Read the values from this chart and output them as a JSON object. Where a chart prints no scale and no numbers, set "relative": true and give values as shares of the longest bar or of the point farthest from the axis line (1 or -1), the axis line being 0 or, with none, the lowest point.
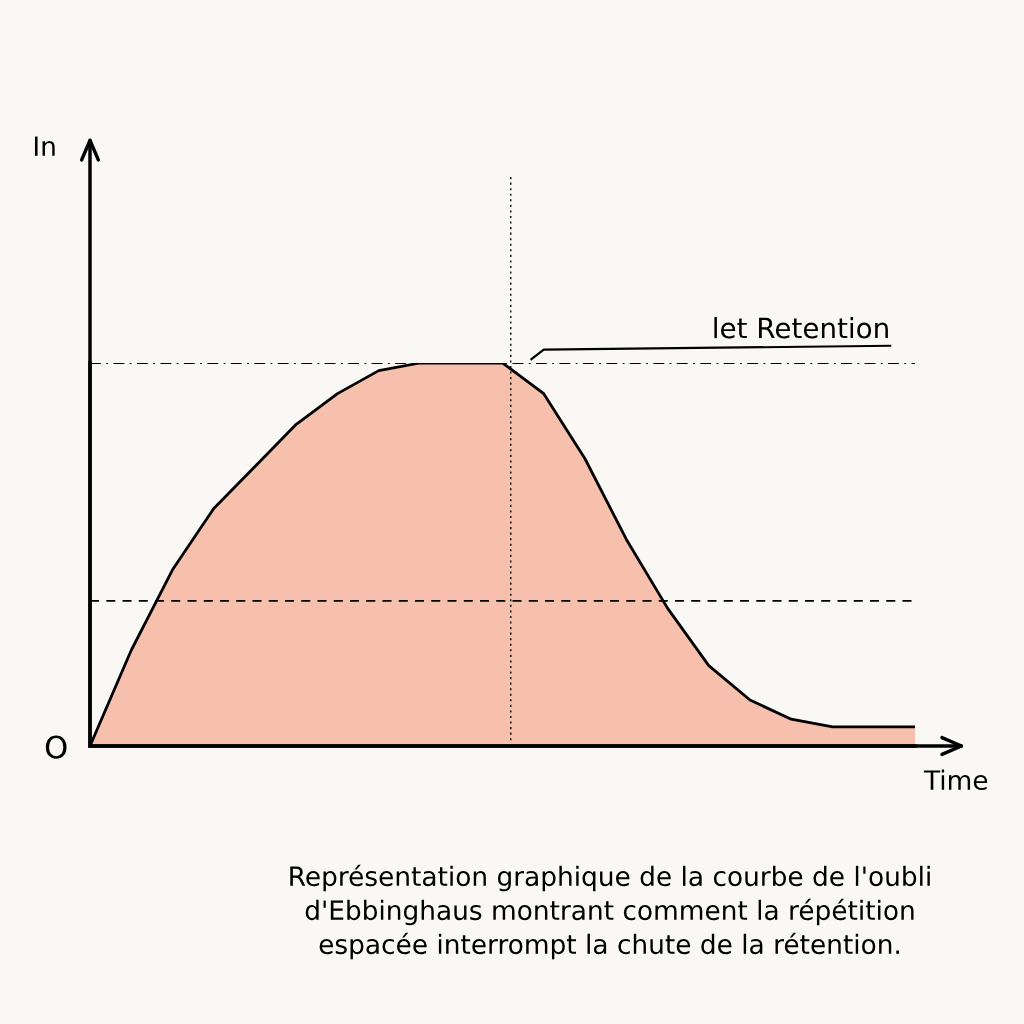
{
  "chart_data": {
    "type": "area",
    "relative": true,
    "xlabel": "Time",
    "categories": [
      null,
      null,
      null,
      null,
      null,
      null,
      null,
      null,
      null,
      null,
      null,
      null,
      null,
      null,
      null,
      null,
      null,
      null,
      null,
      null,
      null
    ],
    "series": [
      {
        "color": "#f7c0ac",
        "values": [
          0,
          0.25,
          0.46,
          0.62,
          0.73,
          0.84,
          0.92,
          0.98,
          1.0,
          1.0,
          1.0,
          0.92,
          0.75,
          0.54,
          0.36,
          0.21,
          0.12,
          0.07,
          0.05,
          0.05,
          0.05
        ]
      }
    ],
    "ref_lines": [
      {
        "axis": "y",
        "value": 1.0,
        "label": "let Retention",
        "line_style": "dashdot"
      },
      {
        "axis": "y",
        "value": 0.379,
        "label": null,
        "line_style": "dashed"
      }
    ],
    "annotations": [
      "In",
      "O",
      "Représentation graphique de la courbe de l'oubli\nd'Ebbinghaus montrant comment la répétition\nespacée interrompt la chute de la rétention."
    ],
    "grid": false
  }
}
